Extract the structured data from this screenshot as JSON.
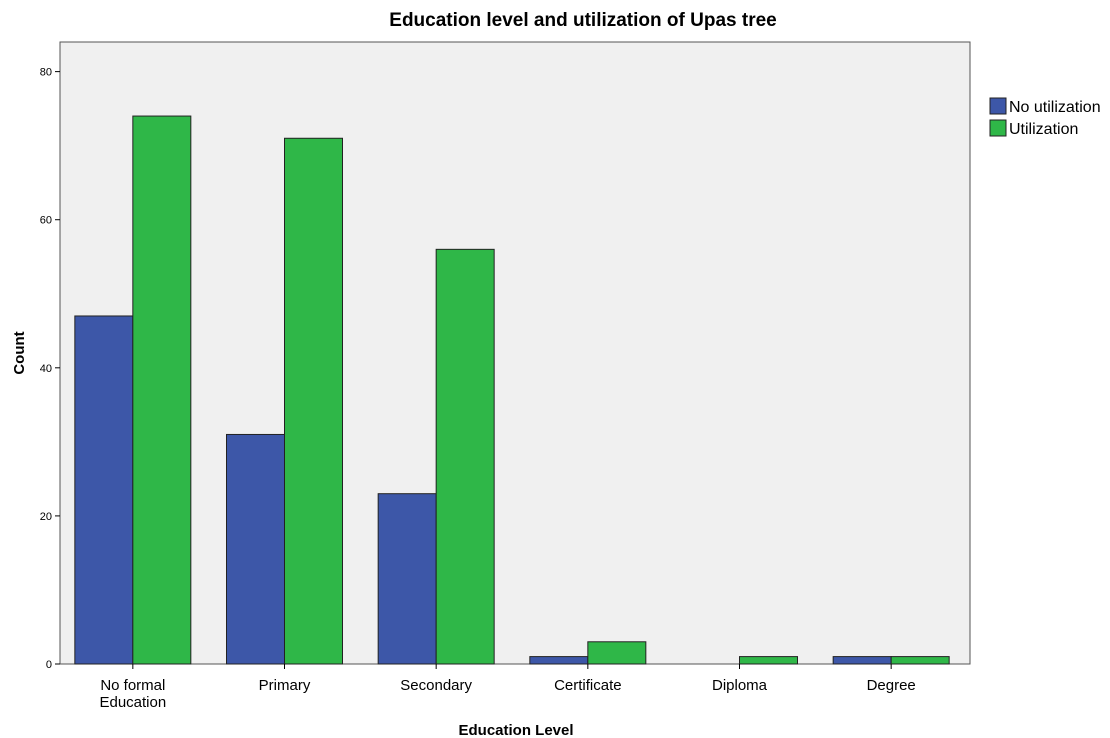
{
  "chart_data": {
    "type": "bar",
    "title": "Education level and utilization of Upas tree",
    "xlabel": "Education Level",
    "ylabel": "Count",
    "ylim": [
      0,
      84
    ],
    "yticks": [
      0,
      20,
      40,
      60,
      80
    ],
    "categories": [
      [
        "No formal",
        "Education"
      ],
      [
        "Primary"
      ],
      [
        "Secondary"
      ],
      [
        "Certificate"
      ],
      [
        "Diploma"
      ],
      [
        "Degree"
      ]
    ],
    "series": [
      {
        "name": "No utilization",
        "color": "#3d57a8",
        "values": [
          47,
          31,
          23,
          1,
          0,
          1
        ]
      },
      {
        "name": "Utilization",
        "color": "#2fb748",
        "values": [
          74,
          71,
          56,
          3,
          1,
          1
        ]
      }
    ],
    "grid": false,
    "legend": "right",
    "plot_background": "#f0f0f0"
  }
}
